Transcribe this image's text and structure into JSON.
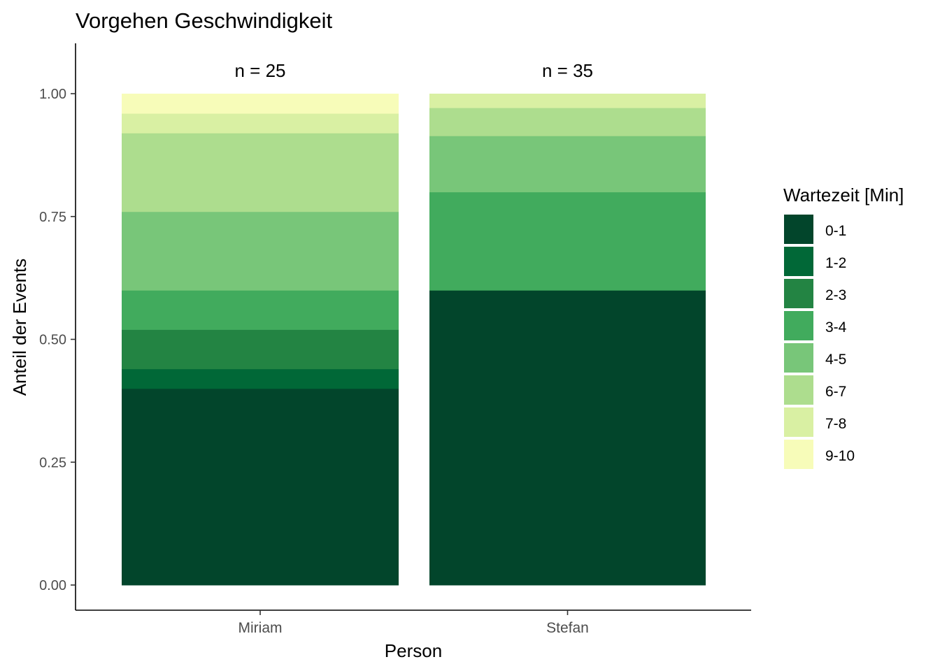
{
  "chart_data": {
    "type": "bar",
    "stacked": true,
    "title": "Vorgehen Geschwindigkeit",
    "xlabel": "Person",
    "ylabel": "Anteil der Events",
    "categories": [
      "Miriam",
      "Stefan"
    ],
    "annotations": [
      "n = 25",
      "n = 35"
    ],
    "ylim": [
      0,
      1.1
    ],
    "yticks": [
      {
        "value": 0,
        "label": "0.00"
      },
      {
        "value": 0.25,
        "label": "0.25"
      },
      {
        "value": 0.5,
        "label": "0.50"
      },
      {
        "value": 0.75,
        "label": "0.75"
      },
      {
        "value": 1,
        "label": "1.00"
      }
    ],
    "grid": false,
    "legend": {
      "title": "Wartezeit [Min]",
      "position": "right"
    },
    "series": [
      {
        "name": "0-1",
        "color": "#02452B",
        "values": [
          0.4,
          0.6
        ]
      },
      {
        "name": "1-2",
        "color": "#016837",
        "values": [
          0.04,
          0.0
        ]
      },
      {
        "name": "2-3",
        "color": "#238443",
        "values": [
          0.08,
          0.0
        ]
      },
      {
        "name": "3-4",
        "color": "#41AB5D",
        "values": [
          0.08,
          0.2
        ]
      },
      {
        "name": "4-5",
        "color": "#78C679",
        "values": [
          0.16,
          0.1143
        ]
      },
      {
        "name": "6-7",
        "color": "#ADDD8E",
        "values": [
          0.16,
          0.0571
        ]
      },
      {
        "name": "7-8",
        "color": "#D9F0A3",
        "values": [
          0.04,
          0.0286
        ]
      },
      {
        "name": "9-10",
        "color": "#F7FCB9",
        "values": [
          0.04,
          0.0
        ]
      }
    ]
  }
}
